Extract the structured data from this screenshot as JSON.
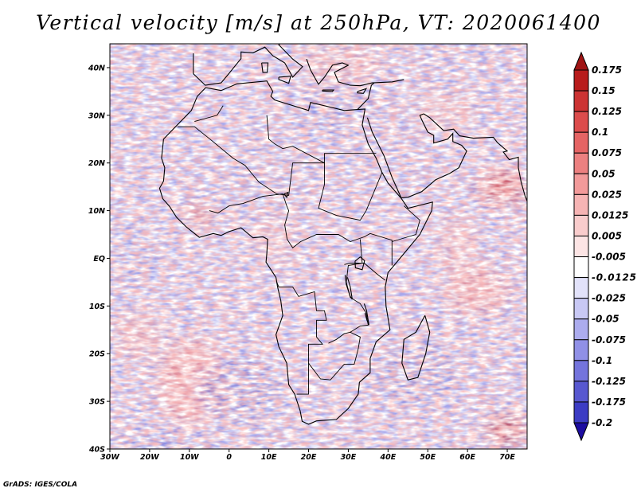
{
  "title": "Vertical velocity [m/s] at 250hPa, VT: 2020061400",
  "credit": "GrADS: IGES/COLA",
  "map": {
    "lon_range": [
      -30,
      75
    ],
    "lat_range": [
      -40,
      45
    ],
    "lat_ticks": [
      {
        "value": 40,
        "label": "40N"
      },
      {
        "value": 30,
        "label": "30N"
      },
      {
        "value": 20,
        "label": "20N"
      },
      {
        "value": 10,
        "label": "10N"
      },
      {
        "value": 0,
        "label": "EQ"
      },
      {
        "value": -10,
        "label": "10S"
      },
      {
        "value": -20,
        "label": "20S"
      },
      {
        "value": -30,
        "label": "30S"
      },
      {
        "value": -40,
        "label": "40S"
      }
    ],
    "lon_ticks": [
      {
        "value": -30,
        "label": "30W"
      },
      {
        "value": -20,
        "label": "20W"
      },
      {
        "value": -10,
        "label": "10W"
      },
      {
        "value": 0,
        "label": "0"
      },
      {
        "value": 10,
        "label": "10E"
      },
      {
        "value": 20,
        "label": "20E"
      },
      {
        "value": 30,
        "label": "30E"
      },
      {
        "value": 40,
        "label": "40E"
      },
      {
        "value": 50,
        "label": "50E"
      },
      {
        "value": 60,
        "label": "60E"
      },
      {
        "value": 70,
        "label": "70E"
      }
    ]
  },
  "colorbar": {
    "levels": [
      {
        "label": "0.175",
        "color": "#b81c1c"
      },
      {
        "label": "0.15",
        "color": "#cc3333"
      },
      {
        "label": "0.125",
        "color": "#dc4c4c"
      },
      {
        "label": "0.1",
        "color": "#e56464"
      },
      {
        "label": "0.075",
        "color": "#ec8080"
      },
      {
        "label": "0.05",
        "color": "#f29a9a"
      },
      {
        "label": "0.025",
        "color": "#f6b4b4"
      },
      {
        "label": "0.0125",
        "color": "#f9cccc"
      },
      {
        "label": "0.005",
        "color": "#fce4e4"
      },
      {
        "label": "-0.005",
        "color": "#ffffff"
      },
      {
        "label": "-0.0125",
        "color": "#e2e2fa"
      },
      {
        "label": "-0.025",
        "color": "#c8c8f4"
      },
      {
        "label": "-0.05",
        "color": "#acacee"
      },
      {
        "label": "-0.075",
        "color": "#9090e6"
      },
      {
        "label": "-0.1",
        "color": "#7474dc"
      },
      {
        "label": "-0.125",
        "color": "#5858d0"
      },
      {
        "label": "-0.175",
        "color": "#3c3cc4"
      },
      {
        "label": "-0.2",
        "color": "#2424b0"
      }
    ],
    "top_arrow_color": "#a01414",
    "bottom_arrow_color": "#1c0ca0"
  }
}
